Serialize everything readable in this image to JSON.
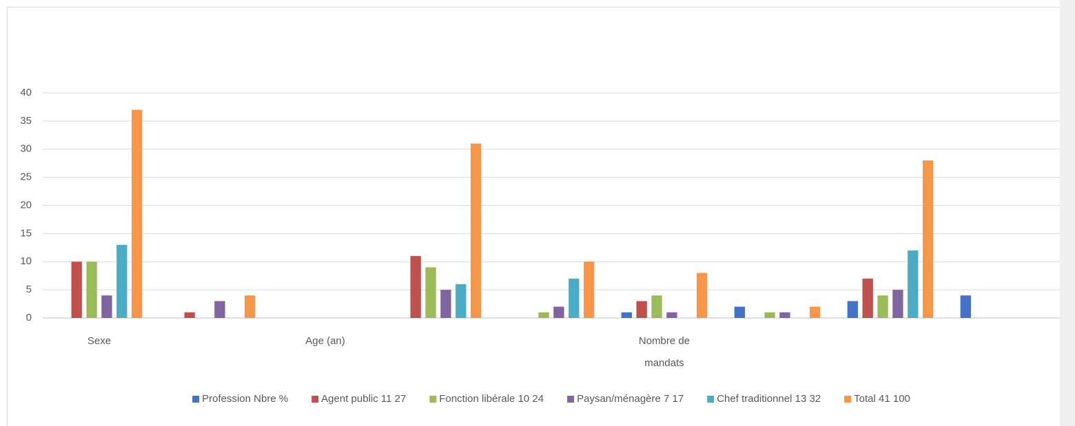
{
  "chart_data": {
    "type": "bar",
    "categories": [
      "Sexe",
      null,
      "Age (an)",
      null,
      null,
      "Nombre de mandats",
      null,
      null,
      null
    ],
    "series": [
      {
        "name": "Profession Nbre %",
        "color": "#4472c4",
        "values": [
          0,
          0,
          0,
          0,
          0,
          1,
          2,
          3,
          4
        ]
      },
      {
        "name": "Agent public 11 27",
        "color": "#c0504d",
        "values": [
          10,
          1,
          0,
          11,
          0,
          3,
          0,
          7,
          0
        ]
      },
      {
        "name": "Fonction libérale 10 24",
        "color": "#9bbb59",
        "values": [
          10,
          0,
          0,
          9,
          1,
          4,
          1,
          4,
          0
        ]
      },
      {
        "name": "Paysan/ménagère 7 17",
        "color": "#8064a2",
        "values": [
          4,
          3,
          0,
          5,
          2,
          1,
          1,
          5,
          0
        ]
      },
      {
        "name": "Chef traditionnel 13 32",
        "color": "#4bacc6",
        "values": [
          13,
          0,
          0,
          6,
          7,
          0,
          0,
          12,
          0
        ]
      },
      {
        "name": "Total 41 100",
        "color": "#f79646",
        "values": [
          37,
          4,
          0,
          31,
          10,
          8,
          2,
          28,
          0
        ]
      }
    ],
    "ylim": [
      0,
      40
    ],
    "yticks": [
      0,
      5,
      10,
      15,
      20,
      25,
      30,
      35,
      40
    ],
    "grid": true,
    "legend": "bottom"
  }
}
